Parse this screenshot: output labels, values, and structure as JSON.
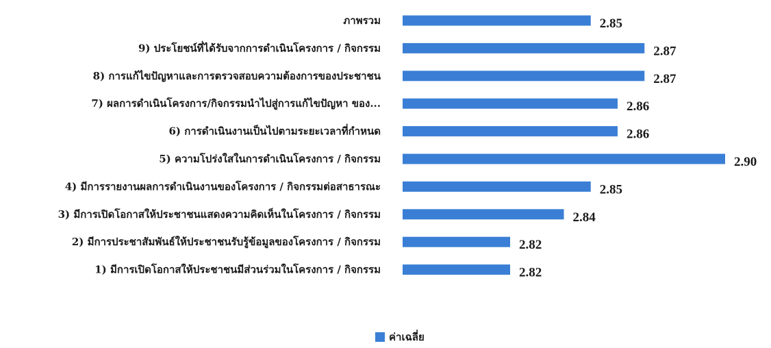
{
  "chart_data": {
    "type": "bar",
    "orientation": "horizontal",
    "categories": [
      "ภาพรวม",
      "9) ประโยชน์ที่ได้รับจากการดำเนินโครงการ / กิจกรรม",
      "8) การแก้ไขปัญหาและการตรวจสอบความต้องการของประชาชน",
      "7) ผลการดำเนินโครงการ/กิจกรรมนำไปสู่การแก้ไขปัญหา ของ...",
      "6) การดำเนินงานเป็นไปตามระยะเวลาที่กำหนด",
      "5) ความโปร่งใสในการดำเนินโครงการ / กิจกรรม",
      "4) มีการรายงานผลการดำเนินงานของโครงการ / กิจกรรมต่อสาธารณะ",
      "3) มีการเปิดโอกาสให้ประชาชนแสดงความคิดเห็นในโครงการ / กิจกรรม",
      "2) มีการประชาสัมพันธ์ให้ประชาชนรับรู้ข้อมูลของโครงการ / กิจกรรม",
      "1) มีการเปิดโอกาสให้ประชาชนมีส่วนร่วมในโครงการ / กิจกรรม"
    ],
    "series": [
      {
        "name": "ค่าเฉลี่ย",
        "values": [
          2.85,
          2.87,
          2.87,
          2.86,
          2.86,
          2.9,
          2.85,
          2.84,
          2.82,
          2.82
        ],
        "value_labels": [
          "2.85",
          "2.87",
          "2.87",
          "2.86",
          "2.86",
          "2.90",
          "2.85",
          "2.84",
          "2.82",
          "2.82"
        ]
      }
    ],
    "xlim": [
      2.78,
      2.9
    ],
    "grid": false,
    "legend_position": "bottom-center",
    "bar_color": "#3a7fd5"
  }
}
